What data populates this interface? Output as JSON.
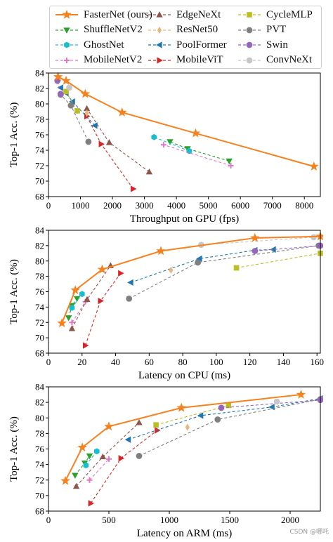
{
  "legend": [
    {
      "name": "FasterNet (ours)",
      "color": "#f5821f",
      "marker": "star",
      "dash": "solid"
    },
    {
      "name": "EdgeNeXt",
      "color": "#8c564b",
      "marker": "triangle-up",
      "dash": "dashed"
    },
    {
      "name": "CycleMLP",
      "color": "#bcbd22",
      "marker": "square",
      "dash": "dashed"
    },
    {
      "name": "ShuffleNetV2",
      "color": "#2ca02c",
      "marker": "triangle-down",
      "dash": "dashed"
    },
    {
      "name": "ResNet50",
      "color": "#e8b67a",
      "marker": "diamond",
      "dash": "dashed"
    },
    {
      "name": "PVT",
      "color": "#7f7f7f",
      "marker": "circle",
      "dash": "dashed"
    },
    {
      "name": "GhostNet",
      "color": "#17becf",
      "marker": "hexagon",
      "dash": "dashed"
    },
    {
      "name": "PoolFormer",
      "color": "#1f77b4",
      "marker": "triangle-left",
      "dash": "dashed"
    },
    {
      "name": "Swin",
      "color": "#9467bd",
      "marker": "circle",
      "dash": "dashed"
    },
    {
      "name": "MobileNetV2",
      "color": "#e377c2",
      "marker": "plus",
      "dash": "dashed"
    },
    {
      "name": "MobileViT",
      "color": "#d62728",
      "marker": "triangle-right",
      "dash": "dashed"
    },
    {
      "name": "ConvNeXt",
      "color": "#c7c7c7",
      "marker": "circle",
      "dash": "dashed"
    }
  ],
  "watermark": "CSDN @哪吒",
  "chart_data": [
    {
      "type": "line",
      "xlabel": "Throughput on GPU (fps)",
      "ylabel": "Top-1 Acc. (%)",
      "xlim": [
        0,
        8500
      ],
      "ylim": [
        68,
        84
      ],
      "xticks": [
        0,
        1000,
        2000,
        3000,
        4000,
        5000,
        6000,
        7000,
        8000
      ],
      "yticks": [
        68,
        70,
        72,
        74,
        76,
        78,
        80,
        82,
        84
      ],
      "grid": false,
      "series": [
        {
          "name": "FasterNet (ours)",
          "points": [
            [
              8300,
              71.9
            ],
            [
              4600,
              76.2
            ],
            [
              2300,
              78.9
            ],
            [
              1150,
              81.3
            ],
            [
              550,
              83.0
            ],
            [
              300,
              83.5
            ]
          ]
        },
        {
          "name": "ShuffleNetV2",
          "points": [
            [
              5650,
              72.6
            ],
            [
              4350,
              74.2
            ],
            [
              3800,
              75.1
            ]
          ]
        },
        {
          "name": "GhostNet",
          "points": [
            [
              4400,
              73.9
            ],
            [
              3300,
              75.7
            ]
          ]
        },
        {
          "name": "MobileNetV2",
          "points": [
            [
              5700,
              72.0
            ],
            [
              3600,
              74.7
            ]
          ]
        },
        {
          "name": "EdgeNeXt",
          "points": [
            [
              3150,
              71.2
            ],
            [
              1900,
              75.0
            ],
            [
              1200,
              79.4
            ]
          ]
        },
        {
          "name": "MobileViT",
          "points": [
            [
              2650,
              69.0
            ],
            [
              1650,
              74.8
            ],
            [
              1200,
              78.4
            ]
          ]
        },
        {
          "name": "PoolFormer",
          "points": [
            [
              1450,
              77.2
            ],
            [
              750,
              80.3
            ],
            [
              550,
              81.4
            ],
            [
              380,
              82.1
            ]
          ]
        },
        {
          "name": "ResNet50",
          "points": [
            [
              1200,
              78.8
            ]
          ]
        },
        {
          "name": "CycleMLP",
          "points": [
            [
              900,
              79.1
            ],
            [
              550,
              81.6
            ]
          ]
        },
        {
          "name": "PVT",
          "points": [
            [
              1250,
              75.1
            ],
            [
              700,
              79.8
            ],
            [
              380,
              81.2
            ]
          ]
        },
        {
          "name": "Swin",
          "points": [
            [
              380,
              81.3
            ],
            [
              280,
              83.0
            ]
          ]
        },
        {
          "name": "ConvNeXt",
          "points": [
            [
              650,
              82.1
            ]
          ]
        }
      ]
    },
    {
      "type": "line",
      "xlabel": "Latency on CPU (ms)",
      "ylabel": "Top-1 Acc. (%)",
      "xlim": [
        0,
        162
      ],
      "ylim": [
        68,
        84
      ],
      "xticks": [
        0,
        20,
        40,
        60,
        80,
        100,
        120,
        140,
        160
      ],
      "yticks": [
        68,
        70,
        72,
        74,
        76,
        78,
        80,
        82,
        84
      ],
      "grid": false,
      "series": [
        {
          "name": "FasterNet (ours)",
          "points": [
            [
              8,
              71.9
            ],
            [
              16,
              76.2
            ],
            [
              32,
              78.9
            ],
            [
              67,
              81.3
            ],
            [
              123,
              83.0
            ],
            [
              162,
              83.2
            ]
          ]
        },
        {
          "name": "ShuffleNetV2",
          "points": [
            [
              12,
              72.6
            ],
            [
              14,
              74.2
            ],
            [
              17,
              75.1
            ]
          ]
        },
        {
          "name": "GhostNet",
          "points": [
            [
              14,
              73.9
            ],
            [
              20,
              75.7
            ]
          ]
        },
        {
          "name": "MobileNetV2",
          "points": [
            [
              14,
              72.0
            ],
            [
              22,
              74.7
            ]
          ]
        },
        {
          "name": "EdgeNeXt",
          "points": [
            [
              14,
              71.2
            ],
            [
              23,
              75.0
            ],
            [
              37,
              79.4
            ]
          ]
        },
        {
          "name": "MobileViT",
          "points": [
            [
              22,
              69.0
            ],
            [
              31,
              74.8
            ],
            [
              43,
              78.4
            ]
          ]
        },
        {
          "name": "PoolFormer",
          "points": [
            [
              49,
              77.2
            ],
            [
              90,
              80.3
            ],
            [
              123,
              81.4
            ],
            [
              134,
              81.5
            ]
          ]
        },
        {
          "name": "ResNet50",
          "points": [
            [
              73,
              78.8
            ]
          ]
        },
        {
          "name": "CycleMLP",
          "points": [
            [
              112,
              79.1
            ],
            [
              162,
              81.0
            ]
          ]
        },
        {
          "name": "PVT",
          "points": [
            [
              48,
              75.1
            ],
            [
              89,
              79.8
            ],
            [
              161,
              82.0
            ]
          ]
        },
        {
          "name": "Swin",
          "points": [
            [
              123,
              81.3
            ],
            [
              162,
              82.0
            ]
          ]
        },
        {
          "name": "ConvNeXt",
          "points": [
            [
              91,
              82.1
            ],
            [
              158,
              83.1
            ]
          ]
        }
      ]
    },
    {
      "type": "line",
      "xlabel": "Latency on ARM (ms)",
      "ylabel": "Top-1 Acc. (%)",
      "xlim": [
        0,
        2250
      ],
      "ylim": [
        68,
        84
      ],
      "xticks": [
        0,
        500,
        1000,
        1500,
        2000
      ],
      "yticks": [
        68,
        70,
        72,
        74,
        76,
        78,
        80,
        82,
        84
      ],
      "grid": false,
      "series": [
        {
          "name": "FasterNet (ours)",
          "points": [
            [
              140,
              71.9
            ],
            [
              280,
              76.2
            ],
            [
              500,
              78.9
            ],
            [
              1100,
              81.3
            ],
            [
              2090,
              83.0
            ]
          ]
        },
        {
          "name": "ShuffleNetV2",
          "points": [
            [
              220,
              72.6
            ],
            [
              300,
              74.2
            ],
            [
              340,
              75.1
            ]
          ]
        },
        {
          "name": "GhostNet",
          "points": [
            [
              310,
              73.9
            ],
            [
              400,
              75.7
            ]
          ]
        },
        {
          "name": "MobileNetV2",
          "points": [
            [
              340,
              72.0
            ],
            [
              500,
              74.7
            ]
          ]
        },
        {
          "name": "EdgeNeXt",
          "points": [
            [
              230,
              71.2
            ],
            [
              450,
              75.0
            ],
            [
              750,
              79.4
            ]
          ]
        },
        {
          "name": "MobileViT",
          "points": [
            [
              350,
              69.0
            ],
            [
              600,
              74.8
            ],
            [
              900,
              78.4
            ]
          ]
        },
        {
          "name": "PoolFormer",
          "points": [
            [
              660,
              77.2
            ],
            [
              1260,
              80.3
            ],
            [
              1850,
              81.4
            ],
            [
              2250,
              82.5
            ]
          ]
        },
        {
          "name": "ResNet50",
          "points": [
            [
              1150,
              78.8
            ]
          ]
        },
        {
          "name": "CycleMLP",
          "points": [
            [
              890,
              79.1
            ],
            [
              1490,
              81.6
            ]
          ]
        },
        {
          "name": "PVT",
          "points": [
            [
              750,
              75.1
            ],
            [
              1400,
              79.8
            ],
            [
              2250,
              82.4
            ]
          ]
        },
        {
          "name": "Swin",
          "points": [
            [
              1430,
              81.3
            ],
            [
              2250,
              82.3
            ]
          ]
        },
        {
          "name": "ConvNeXt",
          "points": [
            [
              1890,
              82.1
            ]
          ]
        }
      ]
    }
  ]
}
